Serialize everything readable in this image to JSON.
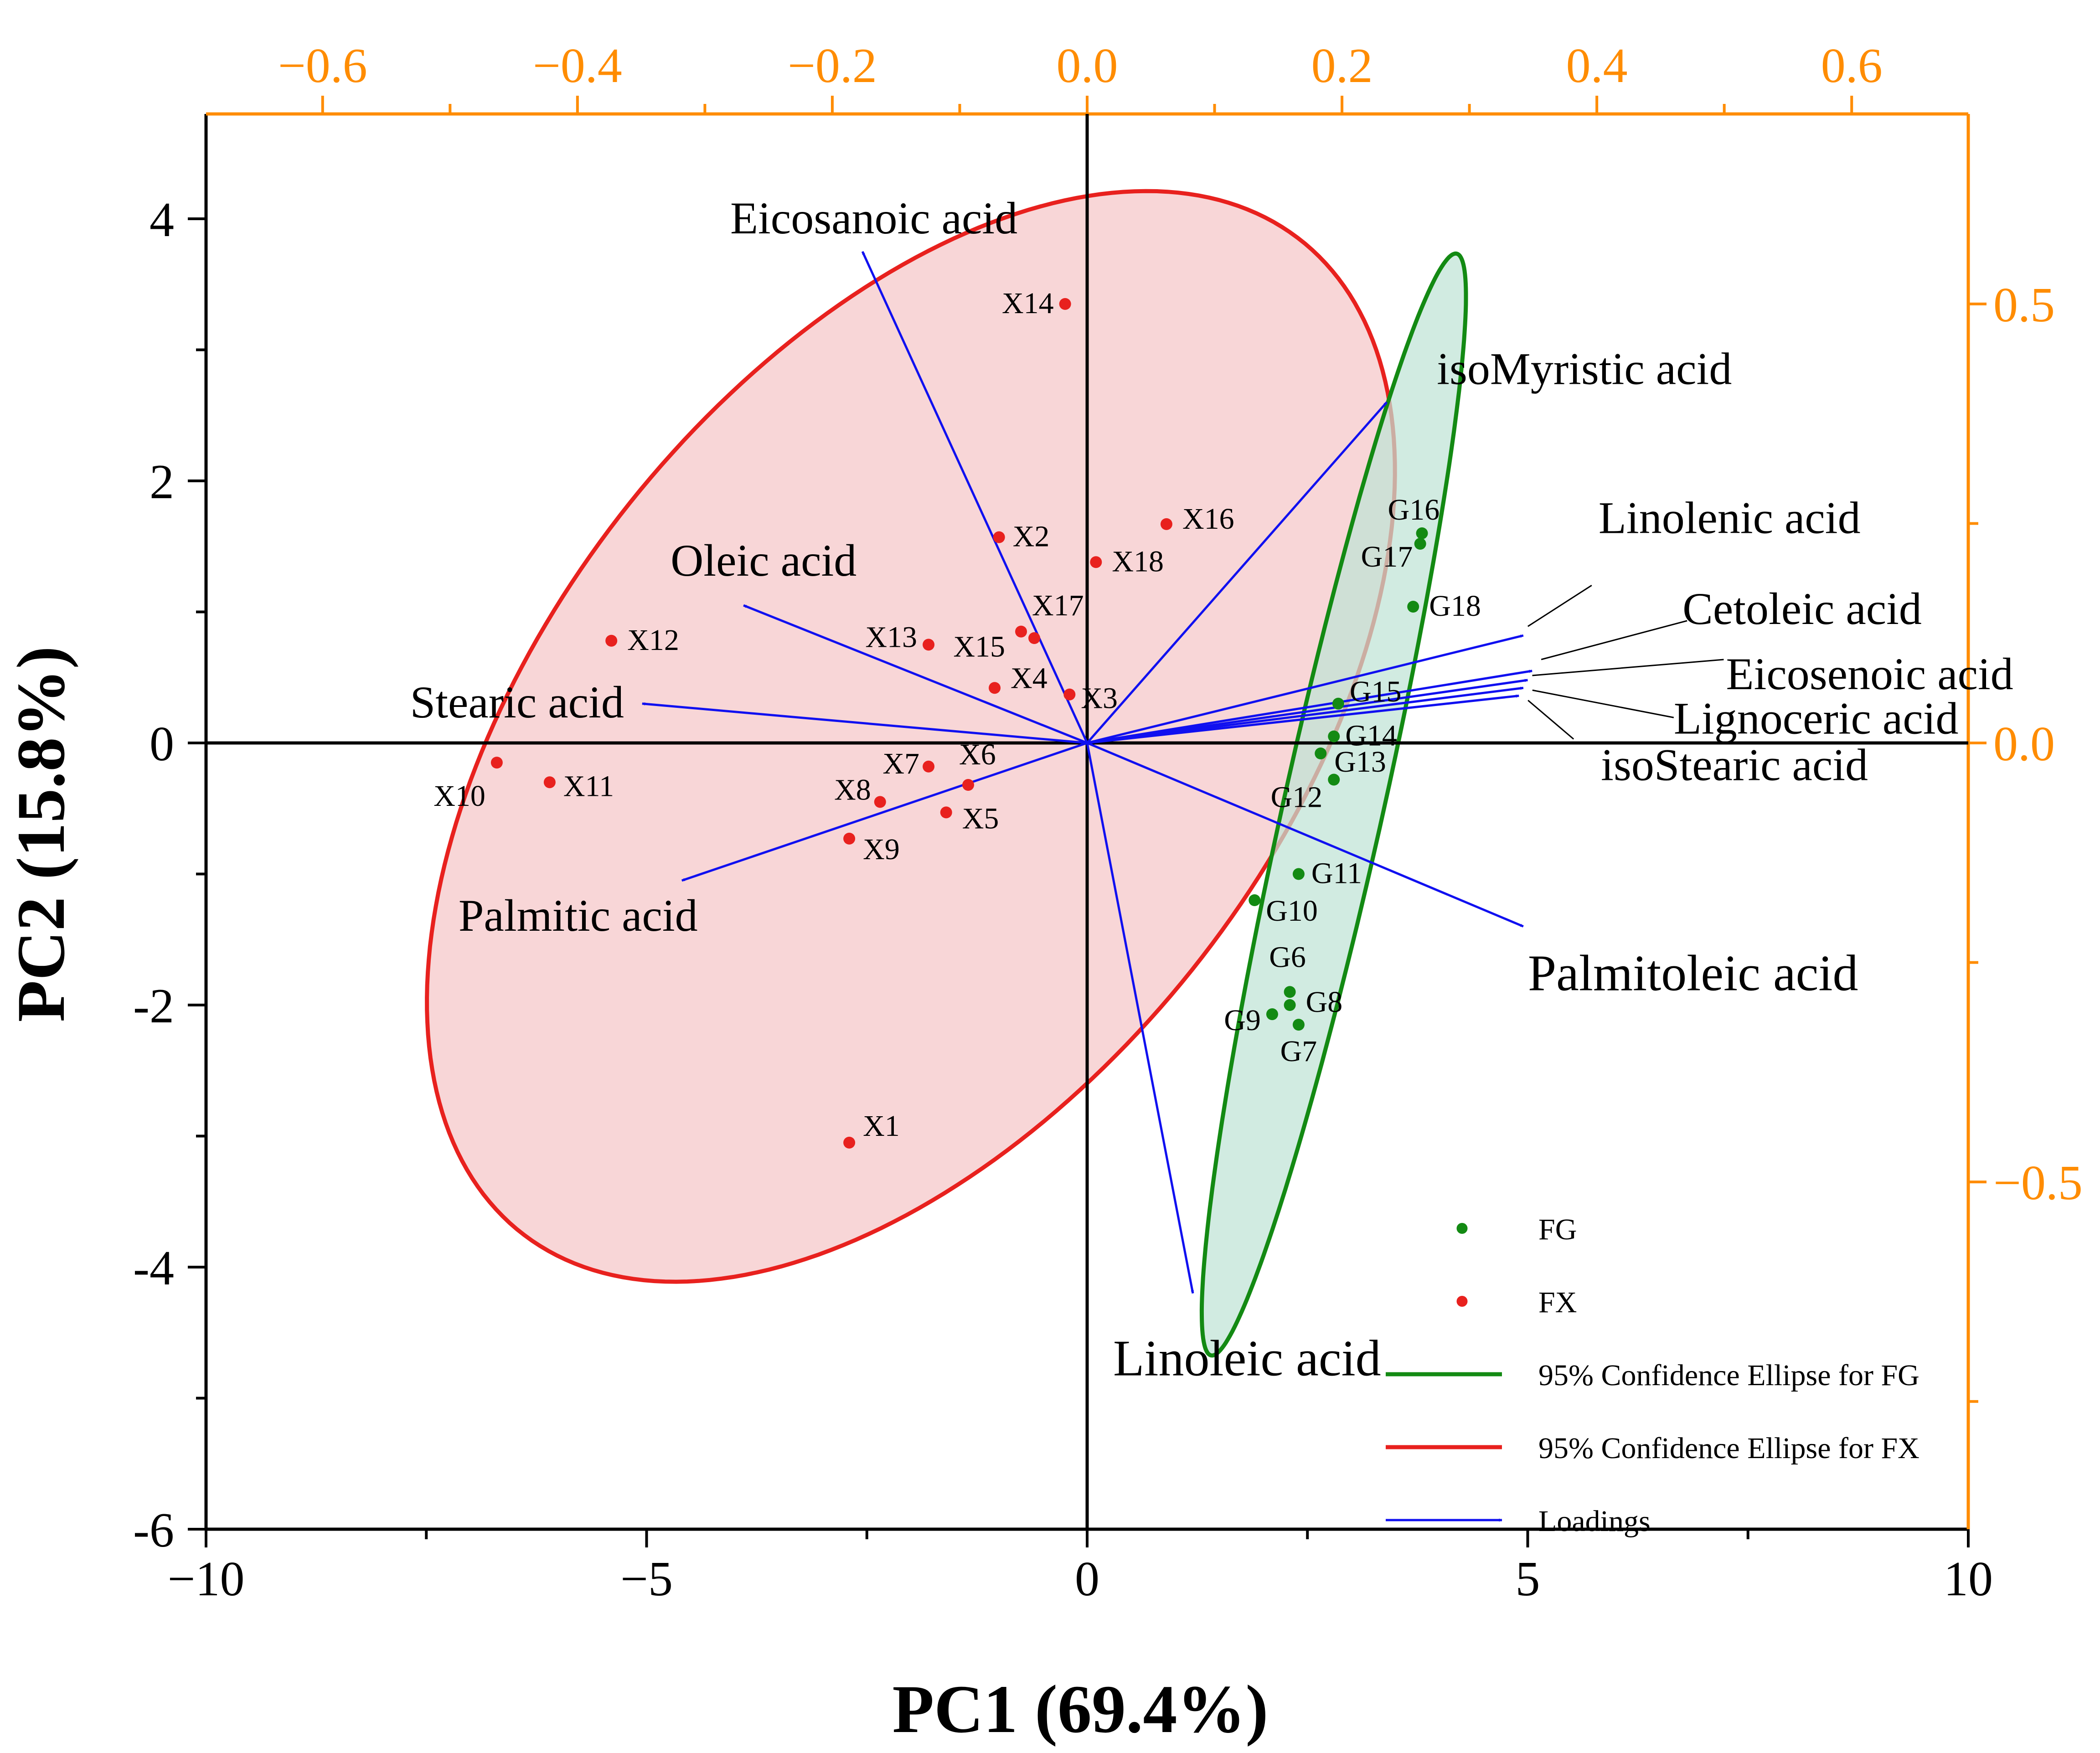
{
  "chart_data": {
    "type": "scatter",
    "subtype": "pca-biplot",
    "xlabel": "PC1 (69.4%)",
    "ylabel": "PC2 (15.8%)",
    "xlim": [
      -10,
      10
    ],
    "ylim": [
      -6,
      4.8
    ],
    "x_ticks": [
      -10,
      -5,
      0,
      5,
      10
    ],
    "x_tick_labels": [
      "−10",
      "−5",
      "0",
      "5",
      "10"
    ],
    "y_ticks": [
      -6,
      -4,
      -2,
      0,
      2,
      4
    ],
    "y_tick_labels": [
      "-6",
      "-4",
      "-2",
      "0",
      "2",
      "4"
    ],
    "loading_axis": {
      "color": "#FF8C00",
      "top_ticks": [
        -0.6,
        -0.4,
        -0.2,
        0.0,
        0.2,
        0.4,
        0.6
      ],
      "top_tick_labels": [
        "−0.6",
        "−0.4",
        "−0.2",
        "0.0",
        "0.2",
        "0.4",
        "0.6"
      ],
      "right_ticks": [
        0.5,
        0.0,
        -0.5
      ],
      "right_tick_labels": [
        "0.5",
        "0.0",
        "−0.5"
      ]
    },
    "series": [
      {
        "name": "FG",
        "color": "#138A13",
        "points": [
          {
            "label": "G6",
            "x": 2.3,
            "y": -1.9
          },
          {
            "label": "G7",
            "x": 2.4,
            "y": -2.15
          },
          {
            "label": "G8",
            "x": 2.3,
            "y": -2.0
          },
          {
            "label": "G9",
            "x": 2.1,
            "y": -2.07
          },
          {
            "label": "G10",
            "x": 1.9,
            "y": -1.2
          },
          {
            "label": "G11",
            "x": 2.4,
            "y": -1.0
          },
          {
            "label": "G12",
            "x": 2.8,
            "y": -0.28
          },
          {
            "label": "G13",
            "x": 2.65,
            "y": -0.08
          },
          {
            "label": "G14",
            "x": 2.8,
            "y": 0.05
          },
          {
            "label": "G15",
            "x": 2.85,
            "y": 0.3
          },
          {
            "label": "G16",
            "x": 3.8,
            "y": 1.6
          },
          {
            "label": "G17",
            "x": 3.78,
            "y": 1.52
          },
          {
            "label": "G18",
            "x": 3.7,
            "y": 1.04
          }
        ]
      },
      {
        "name": "FX",
        "color": "#E8211E",
        "points": [
          {
            "label": "X1",
            "x": -2.7,
            "y": -3.05
          },
          {
            "label": "X2",
            "x": -1.0,
            "y": 1.57
          },
          {
            "label": "X3",
            "x": -0.2,
            "y": 0.37
          },
          {
            "label": "X4",
            "x": -1.05,
            "y": 0.42
          },
          {
            "label": "X5",
            "x": -1.6,
            "y": -0.53
          },
          {
            "label": "X6",
            "x": -1.35,
            "y": -0.32
          },
          {
            "label": "X7",
            "x": -1.8,
            "y": -0.18
          },
          {
            "label": "X8",
            "x": -2.35,
            "y": -0.45
          },
          {
            "label": "X9",
            "x": -2.7,
            "y": -0.73
          },
          {
            "label": "X10",
            "x": -6.7,
            "y": -0.15
          },
          {
            "label": "X11",
            "x": -6.1,
            "y": -0.3
          },
          {
            "label": "X12",
            "x": -5.4,
            "y": 0.78
          },
          {
            "label": "X13",
            "x": -1.8,
            "y": 0.75
          },
          {
            "label": "X14",
            "x": -0.25,
            "y": 3.35
          },
          {
            "label": "X15",
            "x": -0.75,
            "y": 0.85
          },
          {
            "label": "X16",
            "x": 0.9,
            "y": 1.67
          },
          {
            "label": "X17",
            "x": -0.6,
            "y": 0.8
          },
          {
            "label": "X18",
            "x": 0.1,
            "y": 1.38
          }
        ]
      }
    ],
    "loadings": [
      {
        "name": "Eicosanoic acid",
        "x": -2.55,
        "y": 3.75
      },
      {
        "name": "isoMyristic acid",
        "x": 3.4,
        "y": 2.6
      },
      {
        "name": "Oleic acid",
        "x": -3.9,
        "y": 1.05
      },
      {
        "name": "Stearic acid",
        "x": -5.05,
        "y": 0.3
      },
      {
        "name": "Palmitic acid",
        "x": -4.6,
        "y": -1.05
      },
      {
        "name": "Linoleic acid",
        "x": 1.2,
        "y": -4.2
      },
      {
        "name": "Palmitoleic acid",
        "x": 4.95,
        "y": -1.4
      },
      {
        "name": "Linolenic acid",
        "x": 4.95,
        "y": 0.82
      },
      {
        "name": "Cetoleic acid",
        "x": 5.05,
        "y": 0.55
      },
      {
        "name": "Eicosenoic acid",
        "x": 5.0,
        "y": 0.48
      },
      {
        "name": "Lignoceric acid",
        "x": 4.95,
        "y": 0.42
      },
      {
        "name": "isoStearic acid",
        "x": 4.9,
        "y": 0.36
      }
    ],
    "ellipses": [
      {
        "series": "FX",
        "color": "#E8211E",
        "fill": "#F5C6C8",
        "cx": -2.0,
        "cy": 0.05,
        "rx": 6.05,
        "ry": 3.3,
        "angle_deg": 30
      },
      {
        "series": "FG",
        "color": "#138A13",
        "fill": "#BFE3D6",
        "cx": 2.8,
        "cy": -0.47,
        "rx": 4.43,
        "ry": 0.55,
        "angle_deg": 71.5
      }
    ],
    "legend": {
      "position": "bottom-right",
      "entries": [
        {
          "label": "FG",
          "kind": "point",
          "color": "#138A13"
        },
        {
          "label": "FX",
          "kind": "point",
          "color": "#E8211E"
        },
        {
          "label": "95% Confidence Ellipse for FG",
          "kind": "line",
          "color": "#138A13"
        },
        {
          "label": "95% Confidence Ellipse for FX",
          "kind": "line",
          "color": "#E8211E"
        },
        {
          "label": "Loadings",
          "kind": "arrow",
          "color": "#1010F0"
        }
      ]
    }
  }
}
